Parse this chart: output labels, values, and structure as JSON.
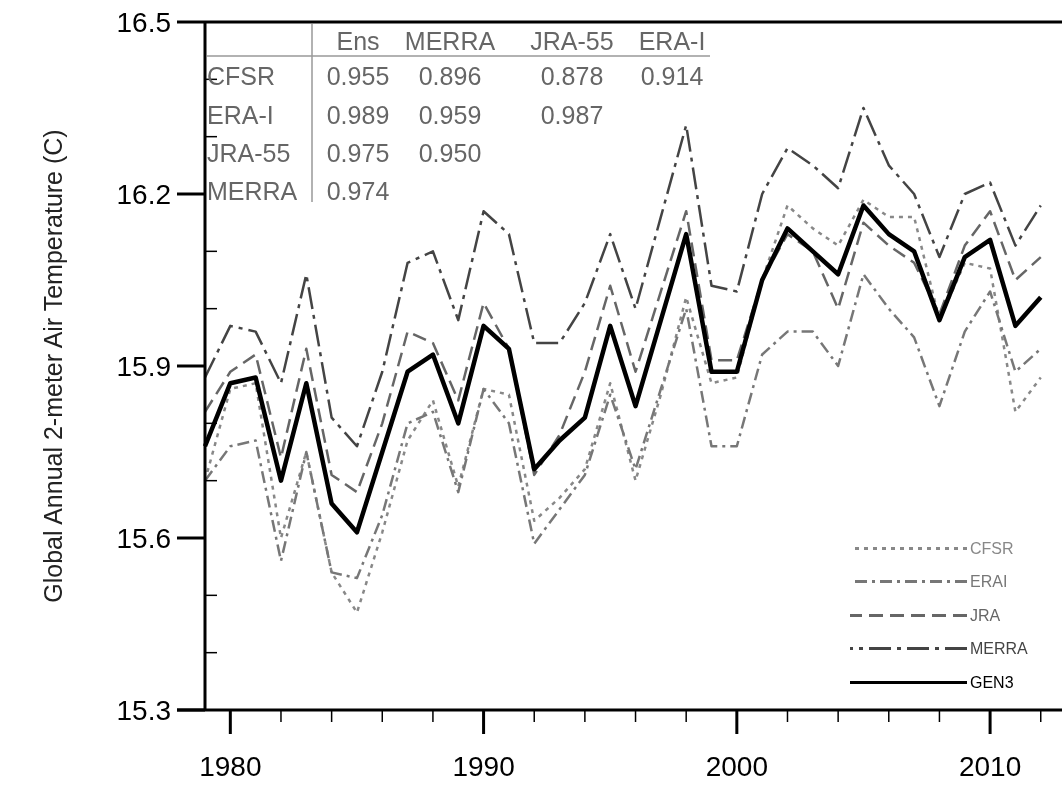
{
  "chart_data": {
    "type": "line",
    "ylabel": "Global Annual 2-meter Air Temperature (C)",
    "x": [
      1979,
      1980,
      1981,
      1982,
      1983,
      1984,
      1985,
      1986,
      1987,
      1988,
      1989,
      1990,
      1991,
      1992,
      1993,
      1994,
      1995,
      1996,
      1997,
      1998,
      1999,
      2000,
      2001,
      2002,
      2003,
      2004,
      2005,
      2006,
      2007,
      2008,
      2009,
      2010,
      2011,
      2012
    ],
    "series": [
      {
        "name": "CFSR",
        "color": "#888888",
        "line_style": "dotted",
        "values": [
          15.7,
          15.86,
          15.87,
          15.6,
          15.75,
          15.54,
          15.47,
          15.61,
          15.77,
          15.84,
          15.69,
          15.86,
          15.85,
          15.63,
          15.67,
          15.72,
          15.87,
          15.7,
          15.85,
          16.02,
          15.87,
          15.88,
          16.05,
          16.18,
          16.14,
          16.11,
          16.19,
          16.16,
          16.16,
          15.98,
          16.08,
          16.07,
          15.82,
          15.88
        ]
      },
      {
        "name": "ERAI",
        "color": "#777777",
        "line_style": "dashed",
        "values": [
          15.7,
          15.76,
          15.77,
          15.56,
          15.75,
          15.54,
          15.53,
          15.64,
          15.8,
          15.82,
          15.68,
          15.86,
          15.8,
          15.59,
          15.65,
          15.71,
          15.85,
          15.72,
          15.86,
          16.0,
          15.76,
          15.76,
          15.92,
          15.96,
          15.96,
          15.9,
          16.06,
          16.0,
          15.95,
          15.83,
          15.96,
          16.03,
          15.89,
          15.93
        ]
      },
      {
        "name": "JRA",
        "color": "#666666",
        "line_style": "dashed",
        "values": [
          15.82,
          15.89,
          15.92,
          15.74,
          15.93,
          15.71,
          15.68,
          15.8,
          15.96,
          15.94,
          15.84,
          16.01,
          15.93,
          15.71,
          15.78,
          15.89,
          16.04,
          15.89,
          16.03,
          16.17,
          15.91,
          15.91,
          16.05,
          16.13,
          16.1,
          16.0,
          16.15,
          16.11,
          16.08,
          15.99,
          16.11,
          16.17,
          16.05,
          16.09
        ]
      },
      {
        "name": "MERRA",
        "color": "#444444",
        "line_style": "dashed",
        "values": [
          15.88,
          15.97,
          15.96,
          15.87,
          16.06,
          15.81,
          15.76,
          15.89,
          16.08,
          16.1,
          15.98,
          16.17,
          16.13,
          15.94,
          15.94,
          16.01,
          16.13,
          16.0,
          16.16,
          16.32,
          16.04,
          16.03,
          16.2,
          16.28,
          16.25,
          16.21,
          16.35,
          16.25,
          16.2,
          16.09,
          16.2,
          16.22,
          16.11,
          16.18
        ]
      },
      {
        "name": "GEN3",
        "color": "#000000",
        "line_style": "solid",
        "values": [
          15.76,
          15.87,
          15.88,
          15.7,
          15.87,
          15.66,
          15.61,
          15.75,
          15.89,
          15.92,
          15.8,
          15.97,
          15.93,
          15.72,
          15.77,
          15.81,
          15.97,
          15.83,
          15.98,
          16.13,
          15.89,
          15.89,
          16.05,
          16.14,
          16.1,
          16.06,
          16.18,
          16.13,
          16.1,
          15.98,
          16.09,
          16.12,
          15.97,
          16.02
        ]
      }
    ],
    "xlim": [
      1979,
      2012.8
    ],
    "xticks": [
      1980,
      {
        "value": 1982,
        "label": null
      },
      {
        "value": 1984,
        "label": null
      },
      {
        "value": 1986,
        "label": null
      },
      {
        "value": 1988,
        "label": null
      },
      1990,
      {
        "value": 1992,
        "label": null
      },
      {
        "value": 1994,
        "label": null
      },
      {
        "value": 1996,
        "label": null
      },
      {
        "value": 1998,
        "label": null
      },
      2000,
      {
        "value": 2002,
        "label": null
      },
      {
        "value": 2004,
        "label": null
      },
      {
        "value": 2006,
        "label": null
      },
      {
        "value": 2008,
        "label": null
      },
      2010,
      {
        "value": 2012,
        "label": null
      }
    ],
    "ylim": [
      15.3,
      16.5
    ],
    "yticks": [
      {
        "value": 15.3,
        "label": "15.3"
      },
      {
        "value": 15.4,
        "label": null
      },
      {
        "value": 15.5,
        "label": null
      },
      {
        "value": 15.6,
        "label": "15.6"
      },
      {
        "value": 15.7,
        "label": null
      },
      {
        "value": 15.8,
        "label": null
      },
      {
        "value": 15.9,
        "label": "15.9"
      },
      {
        "value": 16.0,
        "label": null
      },
      {
        "value": 16.1,
        "label": null
      },
      {
        "value": 16.2,
        "label": "16.2"
      },
      {
        "value": 16.3,
        "label": null
      },
      {
        "value": 16.4,
        "label": null
      },
      {
        "value": 16.5,
        "label": "16.5"
      }
    ],
    "legend": "bottom right",
    "grid": false,
    "marker": "none",
    "annotations": [
      "Ens",
      "MERRA",
      "JRA-55",
      "ERA-I",
      "CFSR",
      "0.955",
      "0.896",
      "0.878",
      "0.914",
      "ERA-I",
      "0.989",
      "0.959",
      "0.987",
      "JRA-55",
      "0.975",
      "0.950",
      "MERRA",
      "0.974"
    ]
  }
}
